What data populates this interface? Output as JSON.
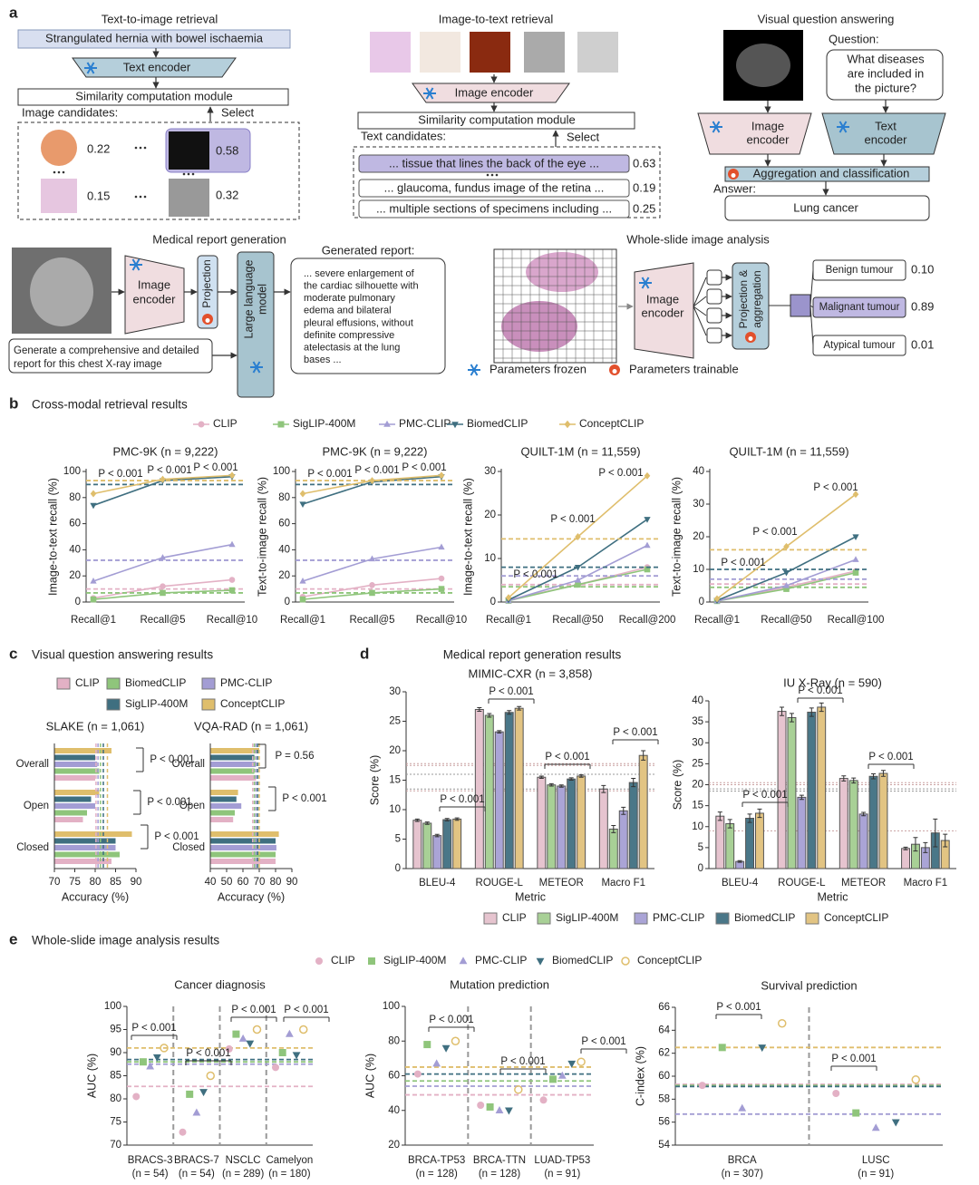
{
  "panels": [
    {
      "label": "a"
    },
    {
      "label": "b",
      "title": "Cross-modal retrieval results",
      "legend": [
        {
          "name": "CLIP",
          "color": "#e3b1c5",
          "marker": "circle"
        },
        {
          "name": "SigLIP-400M",
          "color": "#8fc57b",
          "marker": "square"
        },
        {
          "name": "PMC-CLIP",
          "color": "#a39dd4",
          "marker": "triangle"
        },
        {
          "name": "BiomedCLIP",
          "color": "#3f6f80",
          "marker": "down"
        },
        {
          "name": "ConceptCLIP",
          "color": "#dfbe6c",
          "marker": "diamond"
        }
      ]
    },
    {
      "label": "c",
      "title": "Visual question answering results",
      "legend": [
        {
          "name": "CLIP",
          "color": "#e3b1c5",
          "marker": "square"
        },
        {
          "name": "BiomedCLIP",
          "color": "#8fc57b",
          "marker": "square"
        },
        {
          "name": "PMC-CLIP",
          "color": "#a39dd4",
          "marker": "square"
        },
        {
          "name": "SigLIP-400M",
          "color": "#3f6f80",
          "marker": "square"
        },
        {
          "name": "ConceptCLIP",
          "color": "#dfbe6c",
          "marker": "square"
        }
      ]
    },
    {
      "label": "d",
      "title": "Medical report generation results",
      "legend": [
        {
          "name": "CLIP",
          "color": "#e6c4cf",
          "marker": "square"
        },
        {
          "name": "SigLIP-400M",
          "color": "#a8d096",
          "marker": "square"
        },
        {
          "name": "PMC-CLIP",
          "color": "#aaa4d6",
          "marker": "square"
        },
        {
          "name": "BiomedCLIP",
          "color": "#4a7788",
          "marker": "square"
        },
        {
          "name": "ConceptCLIP",
          "color": "#e2c483",
          "marker": "square"
        }
      ]
    },
    {
      "label": "e",
      "title": "Whole-slide image analysis results",
      "legend": [
        {
          "name": "CLIP",
          "color": "#e3b1c5",
          "marker": "circle"
        },
        {
          "name": "SigLIP-400M",
          "color": "#8fc57b",
          "marker": "square"
        },
        {
          "name": "PMC-CLIP",
          "color": "#a39dd4",
          "marker": "triangle"
        },
        {
          "name": "BiomedCLIP",
          "color": "#3f6f80",
          "marker": "down"
        },
        {
          "name": "ConceptCLIP",
          "color": "#dfbe6c",
          "marker": "ring"
        }
      ]
    }
  ],
  "diagram": {
    "t2i": {
      "title": "Text-to-image retrieval",
      "query": "Strangulated hernia with bowel ischaemia",
      "encoder": "Text encoder",
      "module": "Similarity computation module",
      "candidates_label": "Image candidates:",
      "select": "Select",
      "scores": [
        "0.22",
        "0.58",
        "0.15",
        "0.32"
      ]
    },
    "i2t": {
      "title": "Image-to-text retrieval",
      "encoder": "Image encoder",
      "module": "Similarity computation module",
      "candidates_label": "Text candidates:",
      "select": "Select",
      "candidates": [
        "... tissue that lines the back of the eye ...",
        "... glaucoma, fundus image of the retina ...",
        "... multiple sections of specimens including ..."
      ],
      "scores": [
        "0.63",
        "0.19",
        "0.25"
      ]
    },
    "vqa": {
      "title": "Visual question answering",
      "question_label": "Question:",
      "question": [
        "What diseases",
        "are included in",
        "the picture?"
      ],
      "image_encoder": [
        "Image",
        "encoder"
      ],
      "text_encoder": [
        "Text",
        "encoder"
      ],
      "aggregation": "Aggregation and classification",
      "answer_label": "Answer:",
      "answer": "Lung cancer"
    },
    "report": {
      "title": "Medical report generation",
      "encoder": [
        "Image",
        "encoder"
      ],
      "projection": "Projection",
      "llm": [
        "Large language",
        "model"
      ],
      "prompt": [
        "Generate a comprehensive and detailed",
        "report for this chest X-ray image"
      ],
      "output_label": "Generated report:",
      "output": [
        "... severe enlargement of",
        "the cardiac silhouette with",
        "moderate pulmonary",
        "edema and bilateral",
        "pleural effusions, without",
        "definite compressive",
        "atelectasis at the lung",
        "bases ..."
      ]
    },
    "wsi": {
      "title": "Whole-slide image analysis",
      "encoder": [
        "Image",
        "encoder"
      ],
      "projection": [
        "Projection &",
        "aggregation"
      ],
      "classes": [
        "Benign tumour",
        "Malignant tumour",
        "Atypical tumour"
      ],
      "scores": [
        "0.10",
        "0.89",
        "0.01"
      ]
    },
    "legend": {
      "frozen": "Parameters frozen",
      "trainable": "Parameters trainable"
    }
  },
  "chart_data": [
    {
      "type": "line",
      "title": "PMC-9K (n = 9,222)",
      "ylabel": "Image-to-text recall (%)",
      "categories": [
        "Recall@1",
        "Recall@5",
        "Recall@10"
      ],
      "ylim": [
        0,
        100
      ],
      "yticks": [
        0,
        20,
        40,
        60,
        80,
        100
      ],
      "series": [
        {
          "values": [
            3,
            12,
            17
          ],
          "reference": 10
        },
        {
          "values": [
            2,
            7,
            9
          ],
          "reference": 7
        },
        {
          "values": [
            16,
            34,
            44
          ],
          "reference": 32
        },
        {
          "values": [
            74,
            93,
            96
          ],
          "reference": 90
        },
        {
          "values": [
            83,
            94,
            97
          ],
          "reference": 93
        }
      ],
      "annotations": [
        "P < 0.001",
        "P < 0.001",
        "P < 0.001"
      ]
    },
    {
      "type": "line",
      "title": "PMC-9K (n = 9,222)",
      "ylabel": "Text-to-image recall (%)",
      "categories": [
        "Recall@1",
        "Recall@5",
        "Recall@10"
      ],
      "ylim": [
        0,
        100
      ],
      "yticks": [
        0,
        20,
        40,
        60,
        80,
        100
      ],
      "series": [
        {
          "values": [
            4,
            13,
            18
          ],
          "reference": 10
        },
        {
          "values": [
            2,
            7,
            10
          ],
          "reference": 7
        },
        {
          "values": [
            16,
            33,
            42
          ],
          "reference": 32
        },
        {
          "values": [
            75,
            92,
            96
          ],
          "reference": 90
        },
        {
          "values": [
            83,
            93,
            97
          ],
          "reference": 93
        }
      ],
      "annotations": [
        "P < 0.001",
        "P < 0.001",
        "P < 0.001"
      ]
    },
    {
      "type": "line",
      "title": "QUILT-1M (n = 11,559)",
      "ylabel": "Image-to-text recall (%)",
      "categories": [
        "Recall@1",
        "Recall@50",
        "Recall@200"
      ],
      "ylim": [
        0,
        30
      ],
      "yticks": [
        0,
        10,
        20,
        30
      ],
      "series": [
        {
          "values": [
            0.5,
            4,
            8
          ],
          "reference": 4
        },
        {
          "values": [
            0.3,
            4,
            7.5
          ],
          "reference": 3.5
        },
        {
          "values": [
            0.3,
            5,
            13
          ],
          "reference": 6
        },
        {
          "values": [
            0.5,
            8,
            19
          ],
          "reference": 8
        },
        {
          "values": [
            1,
            15,
            29
          ],
          "reference": 14.5
        }
      ],
      "annotations": [
        "P < 0.001",
        "P < 0.001",
        "P < 0.001"
      ]
    },
    {
      "type": "line",
      "title": "QUILT-1M (n = 11,559)",
      "ylabel": "Text-to-image recall (%)",
      "categories": [
        "Recall@1",
        "Recall@50",
        "Recall@100"
      ],
      "ylim": [
        0,
        40
      ],
      "yticks": [
        0,
        10,
        20,
        30,
        40
      ],
      "series": [
        {
          "values": [
            0.5,
            4.5,
            9.5
          ],
          "reference": 5.5
        },
        {
          "values": [
            0.3,
            4,
            9
          ],
          "reference": 4.5
        },
        {
          "values": [
            0.3,
            5,
            13
          ],
          "reference": 7
        },
        {
          "values": [
            0.5,
            9,
            20
          ],
          "reference": 10
        },
        {
          "values": [
            1,
            17,
            33
          ],
          "reference": 16
        }
      ],
      "annotations": [
        "P < 0.001",
        "P < 0.001",
        "P < 0.001"
      ]
    },
    {
      "type": "hbar",
      "title": "SLAKE (n = 1,061)",
      "xlabel": "Accuracy (%)",
      "categories": [
        "Overall",
        "Open",
        "Closed"
      ],
      "xlim": [
        70,
        90
      ],
      "xticks": [
        70,
        75,
        80,
        85,
        90
      ],
      "series": [
        {
          "values": [
            80,
            77,
            84
          ],
          "reference": 80.2
        },
        {
          "values": [
            81,
            78,
            86
          ],
          "reference": 81.3
        },
        {
          "values": [
            80.5,
            80,
            85
          ],
          "reference": 80.7
        },
        {
          "values": [
            80,
            79,
            85
          ],
          "reference": 82
        },
        {
          "values": [
            84,
            81,
            89
          ],
          "reference": 83
        }
      ],
      "annotations": [
        "P < 0.001",
        "P < 0.001",
        "P < 0.001"
      ]
    },
    {
      "type": "hbar",
      "title": "VQA-RAD (n = 1,061)",
      "xlabel": "Accuracy (%)",
      "categories": [
        "Overall",
        "Open",
        "Closed"
      ],
      "xlim": [
        40,
        90
      ],
      "xticks": [
        40,
        50,
        60,
        70,
        80,
        90
      ],
      "series": [
        {
          "values": [
            68,
            54,
            80
          ],
          "reference": 66
        },
        {
          "values": [
            67,
            55,
            80
          ],
          "reference": 67
        },
        {
          "values": [
            68,
            59,
            80.5
          ],
          "reference": 68
        },
        {
          "values": [
            67,
            56,
            80
          ],
          "reference": 69
        },
        {
          "values": [
            70,
            57,
            82
          ],
          "reference": 70
        }
      ],
      "annotations": [
        "P = 0.56",
        "P < 0.001"
      ]
    },
    {
      "type": "bar",
      "title": "MIMIC-CXR (n = 3,858)",
      "xlabel": "Metric",
      "ylabel": "Score (%)",
      "categories": [
        "BLEU-4",
        "ROUGE-L",
        "METEOR",
        "Macro F1"
      ],
      "ylim": [
        0,
        30
      ],
      "yticks": [
        0,
        5,
        10,
        15,
        20,
        25,
        30
      ],
      "series": [
        {
          "values": [
            8.2,
            27,
            15.5,
            13.5
          ],
          "errors": [
            0.2,
            0.3,
            0.2,
            0.6
          ],
          "reference": 17.5
        },
        {
          "values": [
            7.7,
            26,
            14.2,
            6.7
          ],
          "errors": [
            0.2,
            0.3,
            0.2,
            0.6
          ],
          "reference": 13.5
        },
        {
          "values": [
            5.6,
            23.2,
            14,
            9.8
          ],
          "errors": [
            0.2,
            0.2,
            0.2,
            0.6
          ],
          "reference": 13.2
        },
        {
          "values": [
            8.3,
            26.5,
            15.2,
            14.6
          ],
          "errors": [
            0.2,
            0.3,
            0.2,
            0.7
          ],
          "reference": 16
        },
        {
          "values": [
            8.4,
            27.2,
            15.7,
            19.2
          ],
          "errors": [
            0.2,
            0.3,
            0.2,
            0.8
          ],
          "reference": 17.8
        }
      ],
      "annotations": [
        "P < 0.001",
        "P < 0.001",
        "P < 0.001",
        "P < 0.001"
      ]
    },
    {
      "type": "bar",
      "title": "IU X-Ray (n = 590)",
      "xlabel": "Metric",
      "ylabel": "Score (%)",
      "categories": [
        "BLEU-4",
        "ROUGE-L",
        "METEOR",
        "Macro F1"
      ],
      "ylim": [
        0,
        40
      ],
      "yticks": [
        0,
        5,
        10,
        15,
        20,
        25,
        30,
        35,
        40
      ],
      "series": [
        {
          "values": [
            12.5,
            37.5,
            21.5,
            4.8
          ],
          "errors": [
            1,
            1,
            0.6,
            0.3
          ],
          "reference": 20
        },
        {
          "values": [
            10.7,
            36,
            21,
            5.8
          ],
          "errors": [
            1,
            1,
            0.6,
            1.6
          ],
          "reference": 18.5
        },
        {
          "values": [
            1.7,
            17,
            13,
            5
          ],
          "errors": [
            0.2,
            0.5,
            0.4,
            1.2
          ],
          "reference": 9
        },
        {
          "values": [
            12,
            37.3,
            22,
            8.5
          ],
          "errors": [
            1,
            1,
            0.6,
            3.3
          ],
          "reference": 19
        },
        {
          "values": [
            13.2,
            38.5,
            22.7,
            6.7
          ],
          "errors": [
            1,
            1,
            0.7,
            1.5
          ],
          "reference": 20.5
        }
      ],
      "annotations": [
        "P < 0.001",
        "P < 0.001",
        "P < 0.001"
      ]
    },
    {
      "type": "dot",
      "title": "Cancer diagnosis",
      "ylabel": "AUC (%)",
      "categories": [
        "BRACS-3",
        "BRACS-7",
        "NSCLC",
        "Camelyon"
      ],
      "category_notes": [
        "(n = 54)",
        "(n = 54)",
        "(n = 289)",
        "(n = 180)"
      ],
      "ylim": [
        70,
        100
      ],
      "yticks": [
        70,
        75,
        80,
        85,
        90,
        95,
        100
      ],
      "series": [
        {
          "values": [
            80.5,
            72.8,
            90.8,
            86.8
          ],
          "reference": 82.7
        },
        {
          "values": [
            88,
            81,
            94,
            90
          ],
          "reference": 88
        },
        {
          "values": [
            87,
            77,
            93,
            94
          ],
          "reference": 87.5
        },
        {
          "values": [
            89,
            81.5,
            92,
            89.5
          ],
          "reference": 88.5
        },
        {
          "values": [
            91,
            85,
            95,
            95
          ],
          "reference": 91
        }
      ],
      "annotations": [
        "P < 0.001",
        "P < 0.001",
        "P < 0.001",
        "P < 0.001"
      ]
    },
    {
      "type": "dot",
      "title": "Mutation prediction",
      "ylabel": "AUC (%)",
      "categories": [
        "BRCA-TP53",
        "BRCA-TTN",
        "LUAD-TP53"
      ],
      "category_notes": [
        "(n = 128)",
        "(n = 128)",
        "(n = 91)"
      ],
      "ylim": [
        20,
        100
      ],
      "yticks": [
        20,
        40,
        60,
        80,
        100
      ],
      "series": [
        {
          "values": [
            61,
            43,
            46
          ],
          "reference": 49
        },
        {
          "values": [
            78,
            42,
            58
          ],
          "reference": 57
        },
        {
          "values": [
            67,
            40,
            60
          ],
          "reference": 54
        },
        {
          "values": [
            76,
            40,
            67
          ],
          "reference": 61
        },
        {
          "values": [
            80,
            52,
            68
          ],
          "reference": 65
        }
      ],
      "annotations": [
        "P < 0.001",
        "P < 0.001",
        "P < 0.001"
      ]
    },
    {
      "type": "dot",
      "title": "Survival prediction",
      "ylabel": "C-index (%)",
      "categories": [
        "BRCA",
        "LUSC"
      ],
      "category_notes": [
        "(n = 307)",
        "(n = 91)"
      ],
      "ylim": [
        54,
        66
      ],
      "yticks": [
        54,
        56,
        58,
        60,
        62,
        64,
        66
      ],
      "series": [
        {
          "values": [
            59.2,
            58.5
          ],
          "reference": 59.3
        },
        {
          "values": [
            62.5,
            56.8
          ],
          "reference": 59.2
        },
        {
          "values": [
            57.2,
            55.5
          ],
          "reference": 56.7
        },
        {
          "values": [
            62.5,
            56
          ],
          "reference": 59.1
        },
        {
          "values": [
            64.6,
            59.7
          ],
          "reference": 62.5
        }
      ],
      "annotations": [
        "P < 0.001",
        "P < 0.001"
      ]
    }
  ]
}
